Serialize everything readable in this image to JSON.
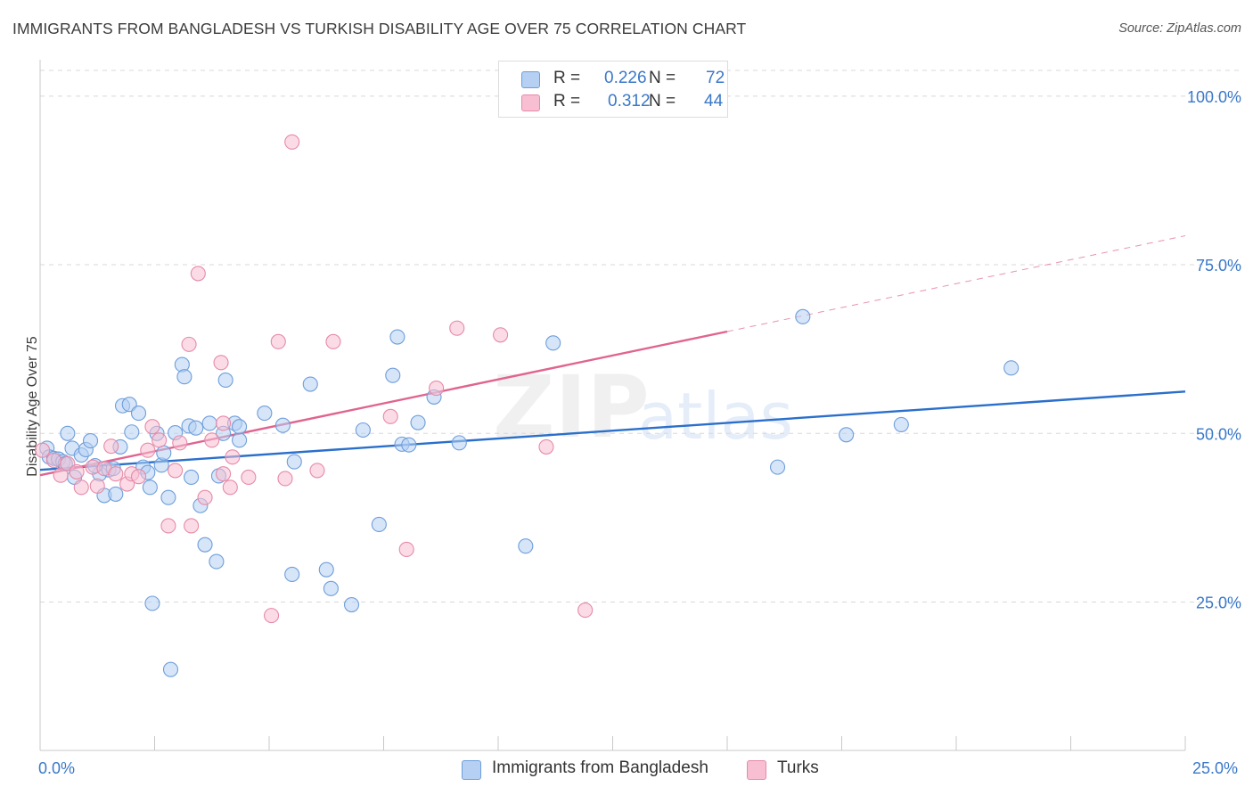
{
  "title": "IMMIGRANTS FROM BANGLADESH VS TURKISH DISABILITY AGE OVER 75 CORRELATION CHART",
  "source": "Source: ZipAtlas.com",
  "watermark": {
    "part1": "ZIP",
    "part2": "atlas"
  },
  "colors": {
    "blue_fill": "#b5d0f2",
    "blue_stroke": "#6e9edb",
    "blue_line": "#2a6fcb",
    "pink_fill": "#f7bfd1",
    "pink_stroke": "#e68aa8",
    "pink_line": "#e0648f",
    "grid": "#d8d8d8",
    "axis_label": "#3a78c9"
  },
  "legend": {
    "rows": [
      {
        "r_key": "R =",
        "r_value": "0.226",
        "n_key": "N =",
        "n_value": "72"
      },
      {
        "r_key": "R =",
        "r_value": "0.312",
        "n_key": "N =",
        "n_value": "44"
      }
    ]
  },
  "bottom_legend": [
    "Immigrants from Bangladesh",
    "Turks"
  ],
  "chart_data": {
    "type": "scatter",
    "title": "IMMIGRANTS FROM BANGLADESH VS TURKISH DISABILITY AGE OVER 75 CORRELATION CHART",
    "xlabel": "",
    "ylabel": "Disability Age Over 75",
    "xlim": [
      0,
      25
    ],
    "ylim": [
      3,
      105
    ],
    "x_tick_labels": [
      "0.0%",
      "25.0%"
    ],
    "y_ticks": [
      25,
      50,
      75,
      100
    ],
    "y_tick_labels": [
      "25.0%",
      "50.0%",
      "75.0%",
      "100.0%"
    ],
    "grid": true,
    "legend_position": "top-center",
    "series": [
      {
        "name": "Immigrants from Bangladesh",
        "R": 0.226,
        "N": 72,
        "trend": {
          "x0": 0,
          "y0": 44.6,
          "x1": 25,
          "y1": 56.2,
          "dashed_from": null
        },
        "points": [
          [
            0.15,
            47.8
          ],
          [
            0.2,
            46.5
          ],
          [
            0.3,
            46.3
          ],
          [
            0.4,
            46.2
          ],
          [
            0.5,
            45.8
          ],
          [
            0.6,
            50.0
          ],
          [
            0.7,
            47.8
          ],
          [
            0.75,
            43.5
          ],
          [
            0.9,
            46.8
          ],
          [
            1.0,
            47.6
          ],
          [
            1.1,
            48.9
          ],
          [
            1.3,
            44.0
          ],
          [
            1.4,
            40.8
          ],
          [
            1.5,
            44.6
          ],
          [
            1.6,
            44.8
          ],
          [
            1.65,
            41.0
          ],
          [
            1.75,
            48.0
          ],
          [
            1.8,
            54.1
          ],
          [
            1.95,
            54.3
          ],
          [
            2.0,
            50.2
          ],
          [
            2.15,
            53.0
          ],
          [
            2.25,
            45.0
          ],
          [
            2.35,
            44.2
          ],
          [
            2.4,
            42.0
          ],
          [
            2.45,
            24.8
          ],
          [
            2.55,
            50.0
          ],
          [
            2.65,
            45.3
          ],
          [
            2.7,
            47.1
          ],
          [
            2.8,
            40.5
          ],
          [
            2.85,
            15.0
          ],
          [
            2.95,
            50.1
          ],
          [
            3.1,
            60.2
          ],
          [
            3.15,
            58.4
          ],
          [
            3.25,
            51.1
          ],
          [
            3.3,
            43.5
          ],
          [
            3.4,
            50.8
          ],
          [
            3.5,
            39.3
          ],
          [
            3.6,
            33.5
          ],
          [
            3.85,
            31.0
          ],
          [
            3.9,
            43.7
          ],
          [
            4.0,
            50.0
          ],
          [
            4.05,
            57.9
          ],
          [
            4.25,
            51.5
          ],
          [
            4.35,
            49.0
          ],
          [
            4.35,
            51.0
          ],
          [
            4.9,
            53.0
          ],
          [
            5.3,
            51.2
          ],
          [
            5.5,
            29.1
          ],
          [
            5.55,
            45.8
          ],
          [
            5.9,
            57.3
          ],
          [
            6.25,
            29.8
          ],
          [
            6.35,
            27.0
          ],
          [
            6.8,
            24.6
          ],
          [
            7.05,
            50.5
          ],
          [
            7.4,
            36.5
          ],
          [
            7.7,
            58.6
          ],
          [
            7.8,
            64.3
          ],
          [
            7.9,
            48.4
          ],
          [
            8.05,
            48.3
          ],
          [
            8.25,
            51.6
          ],
          [
            8.6,
            55.4
          ],
          [
            9.15,
            48.6
          ],
          [
            10.6,
            33.3
          ],
          [
            11.2,
            63.4
          ],
          [
            16.1,
            45.0
          ],
          [
            16.65,
            67.3
          ],
          [
            17.6,
            49.8
          ],
          [
            18.8,
            51.3
          ],
          [
            21.2,
            59.7
          ],
          [
            0.55,
            45.5
          ],
          [
            1.2,
            45.2
          ],
          [
            3.7,
            51.5
          ]
        ]
      },
      {
        "name": "Turks",
        "R": 0.312,
        "N": 44,
        "trend": {
          "x0": 0,
          "y0": 43.8,
          "x1": 25,
          "y1": 79.3,
          "dashed_from": 15.0
        },
        "points": [
          [
            0.05,
            47.5
          ],
          [
            0.3,
            46.0
          ],
          [
            0.45,
            43.8
          ],
          [
            0.6,
            45.5
          ],
          [
            0.8,
            44.3
          ],
          [
            0.9,
            42.0
          ],
          [
            1.15,
            45.0
          ],
          [
            1.25,
            42.2
          ],
          [
            1.4,
            44.8
          ],
          [
            1.55,
            48.1
          ],
          [
            1.65,
            44.0
          ],
          [
            1.9,
            42.5
          ],
          [
            2.0,
            44.0
          ],
          [
            2.15,
            43.6
          ],
          [
            2.35,
            47.5
          ],
          [
            2.45,
            51.0
          ],
          [
            2.6,
            49.0
          ],
          [
            2.8,
            36.3
          ],
          [
            2.95,
            44.5
          ],
          [
            3.05,
            48.6
          ],
          [
            3.25,
            63.2
          ],
          [
            3.3,
            36.3
          ],
          [
            3.45,
            73.7
          ],
          [
            3.6,
            40.5
          ],
          [
            3.75,
            49.0
          ],
          [
            3.95,
            60.5
          ],
          [
            4.0,
            44.0
          ],
          [
            4.15,
            42.0
          ],
          [
            4.2,
            46.5
          ],
          [
            4.55,
            43.5
          ],
          [
            5.05,
            23.0
          ],
          [
            5.2,
            63.6
          ],
          [
            5.35,
            43.3
          ],
          [
            5.5,
            93.2
          ],
          [
            6.05,
            44.5
          ],
          [
            6.4,
            63.6
          ],
          [
            7.65,
            52.5
          ],
          [
            8.0,
            32.8
          ],
          [
            8.65,
            56.7
          ],
          [
            9.1,
            65.6
          ],
          [
            10.05,
            64.6
          ],
          [
            11.05,
            48.0
          ],
          [
            11.9,
            23.8
          ],
          [
            4.0,
            51.5
          ]
        ]
      }
    ]
  }
}
